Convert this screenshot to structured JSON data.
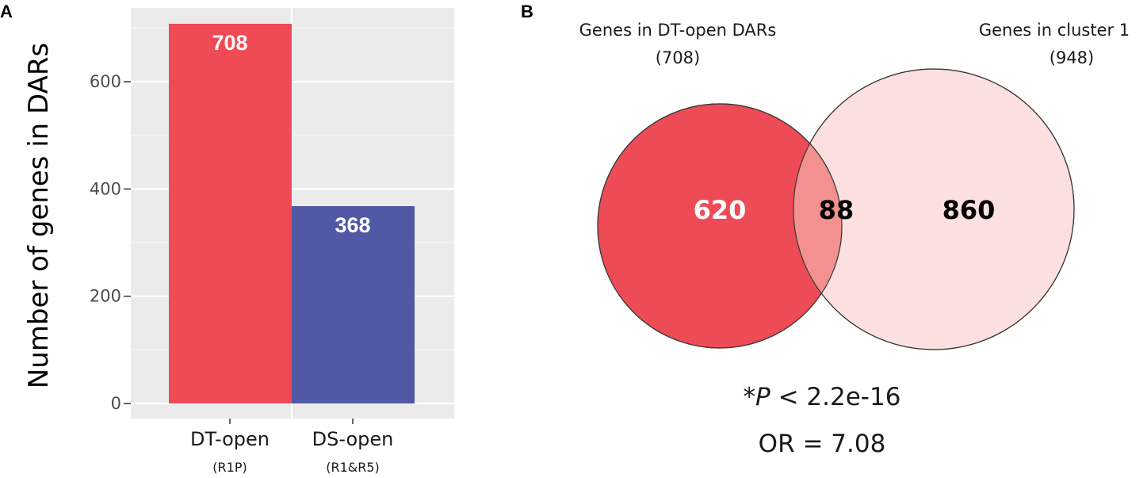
{
  "panels": {
    "a": {
      "letter": "A"
    },
    "b": {
      "letter": "B"
    }
  },
  "chart_data": [
    {
      "type": "bar",
      "panel": "A",
      "ylabel": "Number of genes in DARs",
      "xlabel": "",
      "ylim": [
        0,
        708
      ],
      "yticks": [
        0,
        200,
        400,
        600
      ],
      "ytick_labels": [
        "0",
        "200",
        "400",
        "600"
      ],
      "grid": true,
      "categories": [
        "DT-open",
        "DS-open"
      ],
      "category_sublabels": [
        "(R1P)",
        "(R1&R5)"
      ],
      "values": [
        708,
        368
      ],
      "value_labels": [
        "708",
        "368"
      ],
      "colors": [
        "#ef4a55",
        "#5158a6"
      ],
      "background": "#ebebeb"
    },
    {
      "type": "venn",
      "panel": "B",
      "sets": [
        {
          "title": "Genes in DT-open DARs",
          "total": "(708)",
          "color": "#ed4b55"
        },
        {
          "title": "Genes in cluster 1",
          "total": "(948)",
          "color": "#fbe0df"
        }
      ],
      "regions": {
        "left_only": "620",
        "overlap": "88",
        "right_only": "860"
      },
      "overlap_color": "#f2918f",
      "stats": {
        "p_prefix": "*",
        "p_symbol": "P",
        "p_value": " < 2.2e-16",
        "odds_ratio": "OR = 7.08"
      }
    }
  ]
}
